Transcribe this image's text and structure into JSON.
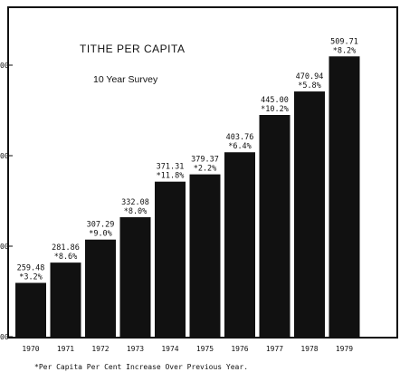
{
  "chart_data": {
    "type": "bar",
    "title": "TITHE PER CAPITA",
    "subtitle": "10 Year Survey",
    "categories": [
      "1970",
      "1971",
      "1972",
      "1973",
      "1974",
      "1975",
      "1976",
      "1977",
      "1978",
      "1979"
    ],
    "values": [
      259.48,
      281.86,
      307.29,
      332.08,
      371.31,
      379.37,
      403.76,
      445.0,
      470.94,
      509.71
    ],
    "increase_labels": [
      "*3.2%",
      "*8.6%",
      "*9.0%",
      "*8.0%",
      "*11.8%",
      "*2.2%",
      "*6.4%",
      "*10.2%",
      "*5.8%",
      "*8.2%"
    ],
    "value_labels": [
      "259.48",
      "281.86",
      "307.29",
      "332.08",
      "371.31",
      "379.37",
      "403.76",
      "445.00",
      "470.94",
      "509.71"
    ],
    "ytick_labels": [
      "00",
      "00",
      "00",
      "00"
    ],
    "ytick_values": [
      200,
      300,
      400,
      500
    ],
    "ylim": [
      200,
      560
    ],
    "footnote": "*Per Capita Per Cent Increase Over Previous Year.",
    "bar_color": "#111111",
    "grid": false
  }
}
